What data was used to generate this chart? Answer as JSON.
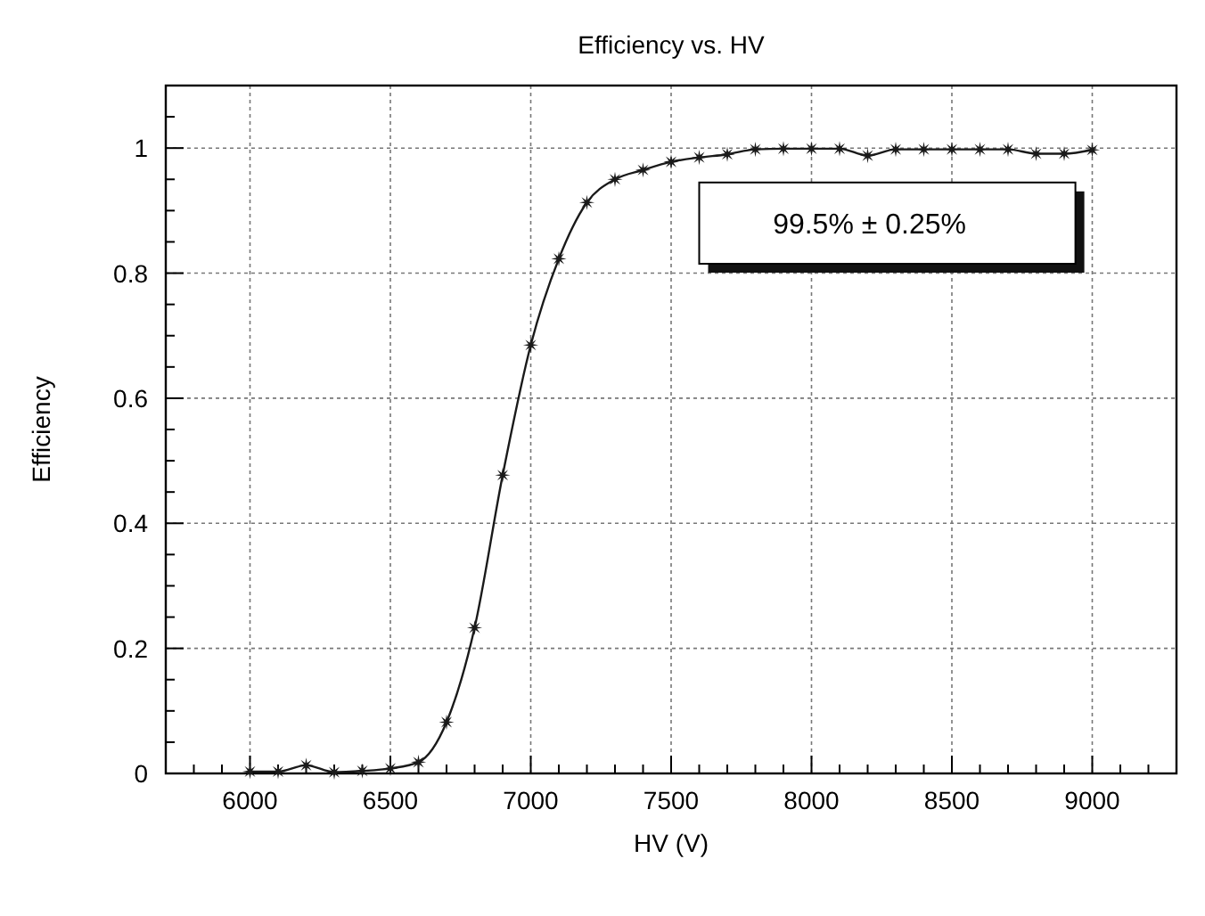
{
  "chart_data": {
    "type": "line",
    "title": "Efficiency vs. HV",
    "xlabel": "HV (V)",
    "ylabel": "Efficiency",
    "x": [
      6000,
      6100,
      6200,
      6300,
      6400,
      6500,
      6600,
      6700,
      6800,
      6900,
      7000,
      7100,
      7200,
      7300,
      7400,
      7500,
      7600,
      7700,
      7800,
      7900,
      8000,
      8100,
      8200,
      8300,
      8400,
      8500,
      8600,
      8700,
      8800,
      8900,
      9000
    ],
    "series": [
      {
        "color": "#1a1a1a",
        "values": [
          0.003,
          0.003,
          0.013,
          0.002,
          0.004,
          0.008,
          0.018,
          0.082,
          0.233,
          0.477,
          0.685,
          0.823,
          0.913,
          0.95,
          0.965,
          0.978,
          0.985,
          0.99,
          0.998,
          0.999,
          0.999,
          0.999,
          0.988,
          0.998,
          0.998,
          0.998,
          0.998,
          0.998,
          0.991,
          0.991,
          0.997
        ]
      }
    ],
    "xlim": [
      5700,
      9300
    ],
    "ylim": [
      0,
      1.1
    ],
    "xticks": [
      {
        "value": 5800,
        "label": null
      },
      {
        "value": 5900,
        "label": null
      },
      6000,
      {
        "value": 6100,
        "label": null
      },
      {
        "value": 6200,
        "label": null
      },
      {
        "value": 6300,
        "label": null
      },
      {
        "value": 6400,
        "label": null
      },
      6500,
      {
        "value": 6600,
        "label": null
      },
      {
        "value": 6700,
        "label": null
      },
      {
        "value": 6800,
        "label": null
      },
      {
        "value": 6900,
        "label": null
      },
      7000,
      {
        "value": 7100,
        "label": null
      },
      {
        "value": 7200,
        "label": null
      },
      {
        "value": 7300,
        "label": null
      },
      {
        "value": 7400,
        "label": null
      },
      7500,
      {
        "value": 7600,
        "label": null
      },
      {
        "value": 7700,
        "label": null
      },
      {
        "value": 7800,
        "label": null
      },
      {
        "value": 7900,
        "label": null
      },
      8000,
      {
        "value": 8100,
        "label": null
      },
      {
        "value": 8200,
        "label": null
      },
      {
        "value": 8300,
        "label": null
      },
      {
        "value": 8400,
        "label": null
      },
      8500,
      {
        "value": 8600,
        "label": null
      },
      {
        "value": 8700,
        "label": null
      },
      {
        "value": 8800,
        "label": null
      },
      {
        "value": 8900,
        "label": null
      },
      9000,
      {
        "value": 9100,
        "label": null
      },
      {
        "value": 9200,
        "label": null
      }
    ],
    "yticks": [
      0,
      {
        "value": 0.05,
        "label": null
      },
      {
        "value": 0.1,
        "label": null
      },
      {
        "value": 0.15,
        "label": null
      },
      0.2,
      {
        "value": 0.25,
        "label": null
      },
      {
        "value": 0.3,
        "label": null
      },
      {
        "value": 0.35,
        "label": null
      },
      0.4,
      {
        "value": 0.45,
        "label": null
      },
      {
        "value": 0.5,
        "label": null
      },
      {
        "value": 0.55,
        "label": null
      },
      0.6,
      {
        "value": 0.65,
        "label": null
      },
      {
        "value": 0.7,
        "label": null
      },
      {
        "value": 0.75,
        "label": null
      },
      0.8,
      {
        "value": 0.85,
        "label": null
      },
      {
        "value": 0.9,
        "label": null
      },
      {
        "value": 0.95,
        "label": null
      },
      1,
      {
        "value": 1.05,
        "label": null
      }
    ],
    "grid": true,
    "marker": "star",
    "line_style": "solid",
    "annotations": [
      "99.5% ± 0.25%"
    ]
  }
}
